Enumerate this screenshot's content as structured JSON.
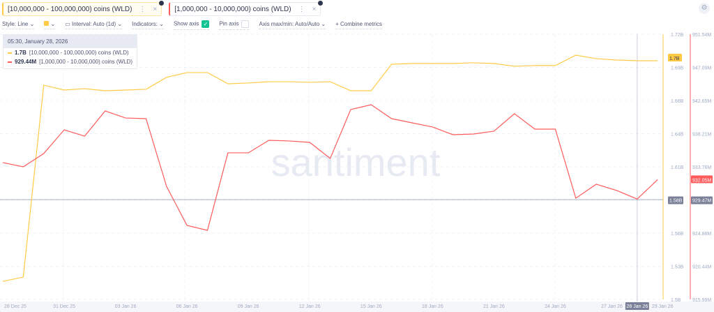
{
  "tabs": [
    {
      "label": "[10,000,000 - 100,000,000) coins (WLD)",
      "color": "#ffcb47"
    },
    {
      "label": "[1,000,000 - 10,000,000) coins (WLD)",
      "color": "#ff5b5b"
    }
  ],
  "toolbar": {
    "style": "Style: Line",
    "interval": "Interval: Auto (1d)",
    "indicators": "Indicators:",
    "show_axis": "Show axis",
    "show_axis_checked": true,
    "pin_axis": "Pin axis",
    "pin_axis_checked": false,
    "axis_minmax": "Axis max/min: Auto/Auto",
    "combine": "Combine metrics"
  },
  "icons": {
    "settings": "gear-icon",
    "more": "more-vertical-icon",
    "close": "close-icon",
    "calendar": "calendar-icon"
  },
  "tooltip": {
    "date": "05:30, January 28, 2026",
    "rows": [
      {
        "value": "1.7B",
        "label": "[10,000,000 - 100,000,000) coins (WLD)",
        "color": "#ffcb47"
      },
      {
        "value": "929.44M",
        "label": "[1,000,000 - 10,000,000) coins (WLD)",
        "color": "#ff5b5b"
      }
    ]
  },
  "watermark": "santiment",
  "chart_data": {
    "type": "line",
    "x": [
      "28 Dec 25",
      "29 Dec 25",
      "30 Dec 25",
      "31 Dec 25",
      "01 Jan 26",
      "02 Jan 26",
      "03 Jan 26",
      "04 Jan 26",
      "05 Jan 26",
      "06 Jan 26",
      "07 Jan 26",
      "08 Jan 26",
      "09 Jan 26",
      "10 Jan 26",
      "11 Jan 26",
      "12 Jan 26",
      "13 Jan 26",
      "14 Jan 26",
      "15 Jan 26",
      "16 Jan 26",
      "17 Jan 26",
      "18 Jan 26",
      "19 Jan 26",
      "20 Jan 26",
      "21 Jan 26",
      "22 Jan 26",
      "23 Jan 26",
      "24 Jan 26",
      "25 Jan 26",
      "26 Jan 26",
      "27 Jan 26",
      "28 Jan 26",
      "29 Jan 26"
    ],
    "xticks": [
      "28 Dec 25",
      "31 Dec 25",
      "03 Jan 26",
      "06 Jan 26",
      "09 Jan 26",
      "12 Jan 26",
      "15 Jan 26",
      "18 Jan 26",
      "21 Jan 26",
      "24 Jan 26",
      "27 Jan 26",
      "28 Jan 26",
      "29 Jan 26"
    ],
    "series": [
      {
        "name": "[10,000,000 - 100,000,000) coins (WLD)",
        "color": "#ffcb47",
        "axis": "left",
        "unit": "B",
        "values": [
          1.515,
          1.5185,
          1.6777,
          1.6737,
          1.6748,
          1.6731,
          1.6737,
          1.6743,
          1.6842,
          1.6882,
          1.6882,
          1.6789,
          1.6795,
          1.6806,
          1.6806,
          1.6801,
          1.6806,
          1.6731,
          1.6731,
          1.6951,
          1.6957,
          1.6957,
          1.6957,
          1.6963,
          1.6957,
          1.6934,
          1.694,
          1.694,
          1.7026,
          1.6997,
          1.6986,
          1.698,
          1.698
        ]
      },
      {
        "name": "[1,000,000 - 10,000,000) coins (WLD)",
        "color": "#ff5b5b",
        "axis": "right",
        "unit": "M",
        "values": [
          934.33,
          933.77,
          935.54,
          938.72,
          937.88,
          941.25,
          940.31,
          940.22,
          931.15,
          925.91,
          925.25,
          935.64,
          935.64,
          937.32,
          937.23,
          937.04,
          934.89,
          941.44,
          942.09,
          940.22,
          939.66,
          939.1,
          938.07,
          938.16,
          938.54,
          940.88,
          938.82,
          938.82,
          929.56,
          931.43,
          930.59,
          929.44,
          932.05
        ]
      }
    ],
    "left_axis": {
      "ylim": [
        1.5,
        1.72
      ],
      "ticks": [
        "1.72B",
        "1.69B",
        "1.66B",
        "1.64B",
        "1.61B",
        "1.58B",
        "1.56B",
        "1.53B",
        "1.5B"
      ],
      "current_label": "1.7B"
    },
    "right_axis": {
      "ylim": [
        915.99,
        951.54
      ],
      "ticks": [
        "951.54M",
        "947.09M",
        "942.65M",
        "938.21M",
        "933.76M",
        "929.47M",
        "924.88M",
        "920.44M",
        "915.99M"
      ],
      "current_label": "932.05M"
    },
    "crosshair": {
      "x": "28 Jan 26",
      "left_label": "1.58B",
      "right_label": "929.47M"
    },
    "grid": true
  }
}
